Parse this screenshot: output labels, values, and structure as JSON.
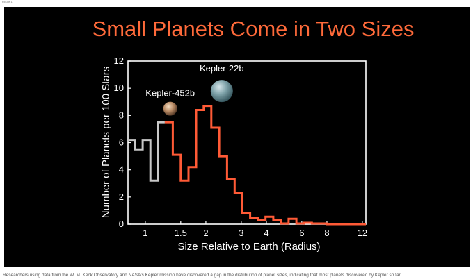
{
  "page": {
    "top_label": "Figure 1",
    "caption": "Researchers using data from the W. M. Keck Observatory and NASA's Kepler mission have discovered a gap in the distribution of planet sizes, indicating that most planets discovered by Kepler so far"
  },
  "colors": {
    "background": "#000000",
    "title": "#ff6a3a",
    "frame": "#ffffff",
    "text": "#ffffff",
    "gray_series": "#c8c8c8",
    "orange_series": "#ff5a36"
  },
  "chart_data": {
    "type": "line",
    "style": "step histogram",
    "title": "Small Planets Come in Two Sizes",
    "xlabel": "Size Relative to Earth (Radius)",
    "ylabel": "Number of Planets per 100 Stars",
    "x_scale": "log",
    "xlim": [
      0.82,
      12.5
    ],
    "ylim": [
      0,
      12
    ],
    "x_ticks": [
      1,
      1.5,
      2,
      3,
      4,
      6,
      8,
      12
    ],
    "x_tick_labels": [
      "1",
      "1.5",
      "2",
      "3",
      "4",
      "6",
      "8",
      "12"
    ],
    "y_ticks": [
      0,
      2,
      4,
      6,
      8,
      10,
      12
    ],
    "y_tick_labels": [
      "0",
      "2",
      "4",
      "6",
      "8",
      "10",
      "12"
    ],
    "grid": false,
    "legend": "none",
    "bin_edges": [
      0.82,
      0.89,
      0.97,
      1.06,
      1.15,
      1.25,
      1.37,
      1.5,
      1.64,
      1.79,
      1.95,
      2.13,
      2.33,
      2.55,
      2.78,
      3.04,
      3.32,
      3.63,
      3.96,
      4.33,
      4.73,
      5.16,
      5.64,
      6.16,
      6.73,
      7.35,
      8.03,
      8.77,
      9.58,
      10.5,
      11.4,
      12.5
    ],
    "series": [
      {
        "color": "#c8c8c8",
        "values": [
          6.2,
          5.5,
          6.2,
          3.2,
          7.5
        ]
      },
      {
        "color": "#ff5a36",
        "values": [
          7.5,
          5.1,
          3.2,
          4.2,
          8.4,
          8.7,
          7.1,
          5.0,
          3.3,
          2.3,
          0.8,
          0.45,
          0.3,
          0.55,
          0.3,
          0.05,
          0.4,
          0.05,
          0.1,
          0.05,
          0.05,
          0.0,
          0.0,
          0.0,
          0.0,
          0.0
        ]
      }
    ],
    "annotations": [
      {
        "text": "Kepler-452b",
        "x": 1.33,
        "y": 8.6,
        "image": "kepler-452b-planet"
      },
      {
        "text": "Kepler-22b",
        "x": 2.4,
        "y": 10.0,
        "image": "kepler-22b-planet"
      }
    ]
  }
}
